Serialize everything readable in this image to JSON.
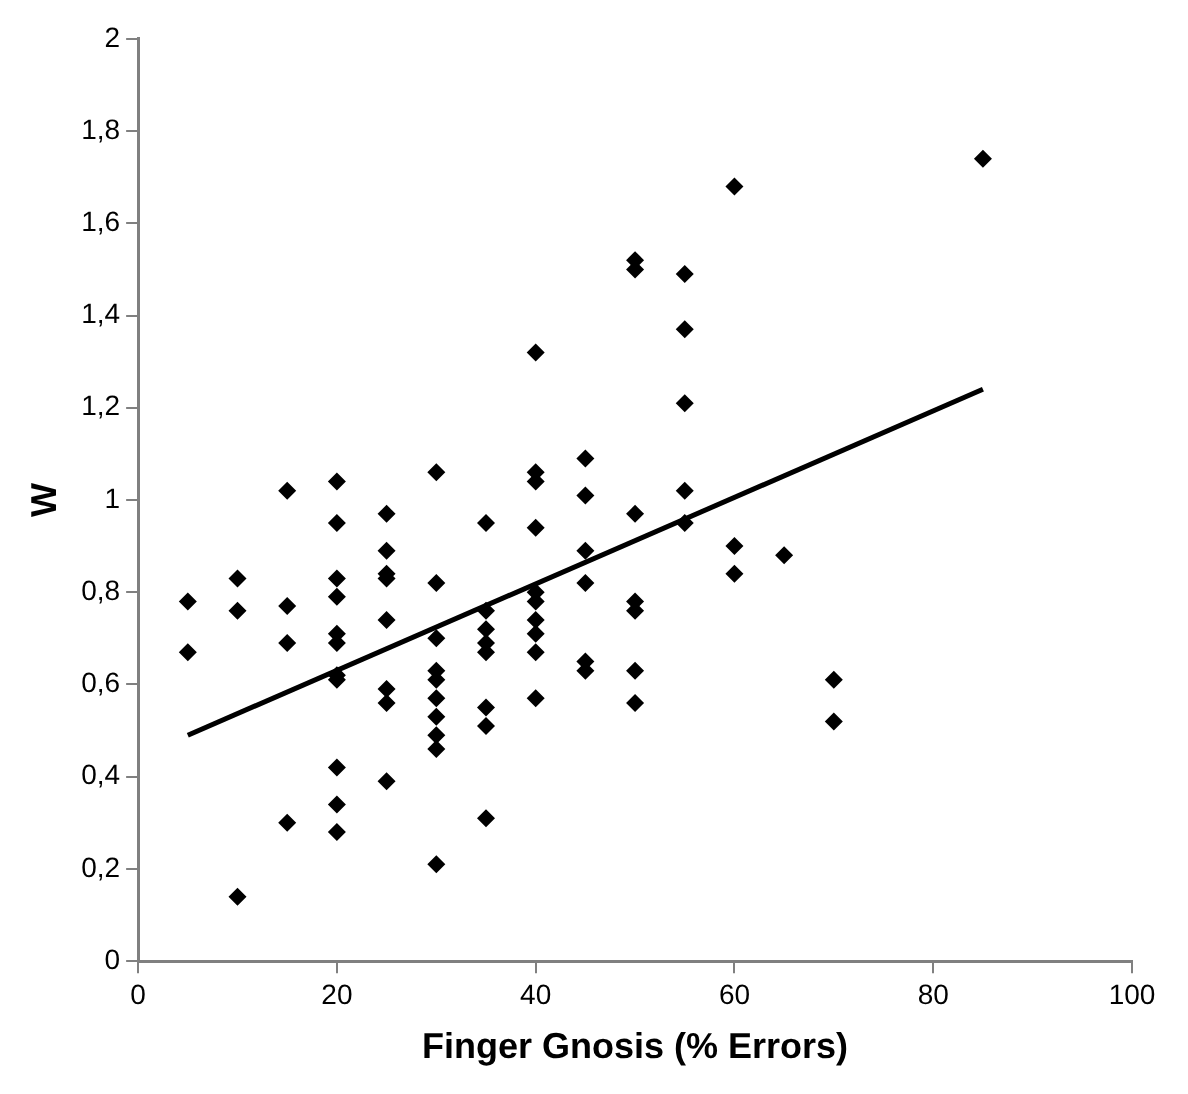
{
  "chart_data": {
    "type": "scatter",
    "xlabel": "Finger Gnosis (% Errors)",
    "ylabel": "W",
    "xlim": [
      0,
      100
    ],
    "xticks": [
      0,
      20,
      40,
      60,
      80,
      100
    ],
    "ylim": [
      0,
      2
    ],
    "yticks": [
      0,
      {
        "value": 0.2,
        "label": "0,2"
      },
      {
        "value": 0.4,
        "label": "0,4"
      },
      {
        "value": 0.6,
        "label": "0,6"
      },
      {
        "value": 0.8,
        "label": "0,8"
      },
      1,
      {
        "value": 1.2,
        "label": "1,2"
      },
      {
        "value": 1.4,
        "label": "1,4"
      },
      {
        "value": 1.6,
        "label": "1,6"
      },
      {
        "value": 1.8,
        "label": "1,8"
      },
      2
    ],
    "grid": false,
    "legend": false,
    "series": [
      {
        "color": "#000000",
        "marker": "diamond",
        "x": [
          5,
          5,
          10,
          10,
          10,
          15,
          15,
          15,
          15,
          20,
          20,
          20,
          20,
          20,
          20,
          20,
          20,
          20,
          20,
          20,
          25,
          25,
          25,
          25,
          25,
          25,
          25,
          25,
          30,
          30,
          30,
          30,
          30,
          30,
          30,
          30,
          30,
          30,
          35,
          35,
          35,
          35,
          35,
          35,
          35,
          35,
          40,
          40,
          40,
          40,
          40,
          40,
          40,
          40,
          40,
          40,
          45,
          45,
          45,
          45,
          45,
          45,
          50,
          50,
          50,
          50,
          50,
          50,
          50,
          55,
          55,
          55,
          55,
          55,
          60,
          60,
          60,
          65,
          70,
          70,
          85
        ],
        "values": [
          0.78,
          0.67,
          0.83,
          0.76,
          0.14,
          1.02,
          0.77,
          0.69,
          0.3,
          1.04,
          0.95,
          0.83,
          0.79,
          0.71,
          0.69,
          0.62,
          0.61,
          0.42,
          0.34,
          0.28,
          0.97,
          0.89,
          0.84,
          0.83,
          0.74,
          0.59,
          0.56,
          0.39,
          1.06,
          0.82,
          0.7,
          0.63,
          0.61,
          0.57,
          0.53,
          0.49,
          0.46,
          0.21,
          0.95,
          0.76,
          0.72,
          0.69,
          0.67,
          0.55,
          0.51,
          0.31,
          1.32,
          1.06,
          1.04,
          0.94,
          0.8,
          0.78,
          0.74,
          0.71,
          0.67,
          0.57,
          1.09,
          1.01,
          0.89,
          0.82,
          0.65,
          0.63,
          1.52,
          1.5,
          0.97,
          0.78,
          0.76,
          0.63,
          0.56,
          1.49,
          1.37,
          1.21,
          1.02,
          0.95,
          1.68,
          0.9,
          0.84,
          0.88,
          0.61,
          0.52,
          1.74
        ]
      },
      {
        "type": "line",
        "color": "#000000",
        "marker": "none",
        "x": [
          5,
          85
        ],
        "values": [
          0.49,
          1.24
        ]
      }
    ]
  }
}
